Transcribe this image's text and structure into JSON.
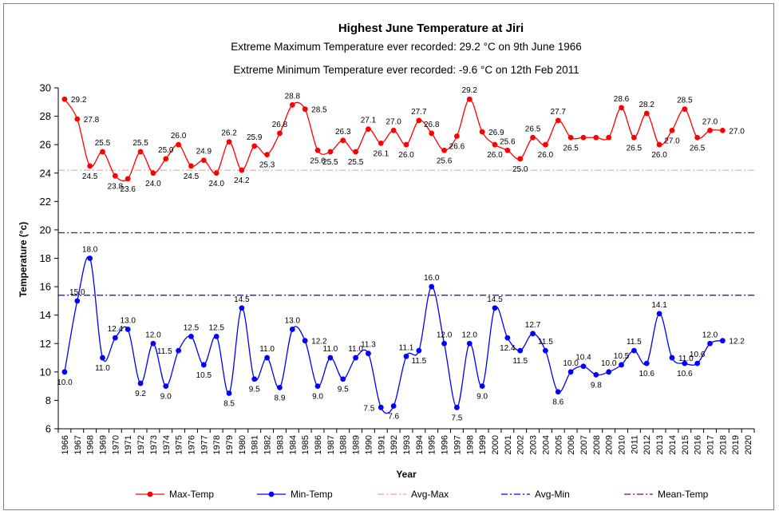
{
  "chart_data": {
    "type": "line",
    "title": "Highest June Temperature at Jiri",
    "subtitles": [
      "Extreme Maximum Temperature ever recorded: 29.2 °C on 9th June 1966",
      "Extreme Minimum Temperature ever recorded: -9.6 °C on 12th Feb 2011"
    ],
    "xlabel": "Year",
    "ylabel": "Temperature (°c)",
    "ylim": [
      6,
      30
    ],
    "yticks": [
      6,
      8,
      10,
      12,
      14,
      16,
      18,
      20,
      22,
      24,
      26,
      28,
      30
    ],
    "x": [
      1966,
      1967,
      1968,
      1969,
      1970,
      1971,
      1972,
      1973,
      1974,
      1975,
      1976,
      1977,
      1978,
      1979,
      1980,
      1981,
      1982,
      1983,
      1984,
      1985,
      1986,
      1987,
      1988,
      1989,
      1990,
      1991,
      1992,
      1993,
      1994,
      1995,
      1996,
      1997,
      1998,
      1999,
      2000,
      2001,
      2002,
      2003,
      2004,
      2005,
      2006,
      2007,
      2008,
      2009,
      2010,
      2011,
      2012,
      2013,
      2014,
      2015,
      2016,
      2017,
      2018,
      2019,
      2020
    ],
    "grid": false,
    "legend_position": "bottom",
    "series": [
      {
        "name": "Max-Temp",
        "kind": "line-marker",
        "color": "#ff0000",
        "values": [
          29.2,
          27.8,
          24.5,
          25.5,
          23.8,
          23.6,
          25.5,
          24.0,
          25.0,
          26.0,
          24.5,
          24.9,
          24.0,
          26.2,
          24.2,
          25.9,
          25.3,
          26.8,
          28.8,
          28.5,
          25.6,
          25.5,
          26.3,
          25.5,
          27.1,
          26.1,
          27.0,
          26.0,
          27.7,
          26.8,
          25.6,
          26.6,
          29.2,
          26.9,
          26.0,
          25.6,
          25.0,
          26.5,
          26.0,
          27.7,
          26.5,
          26.5,
          26.5,
          26.5,
          28.6,
          26.5,
          28.2,
          26.0,
          27.0,
          28.5,
          26.5,
          27.0,
          27.0,
          null,
          null
        ],
        "labels": [
          "29.2",
          "27.8",
          "24.5",
          "25.5",
          "23.8",
          "23.6",
          "25.5",
          "24.0",
          "25.0",
          "26.0",
          "24.5",
          "24.9",
          "24.0",
          "26.2",
          "24.2",
          "25.9",
          "25.3",
          "26.8",
          "28.8",
          "28.5",
          "25.6",
          "25.5",
          "26.3",
          "25.5",
          "27.1",
          "26.1",
          "27.0",
          "26.0",
          "27.7",
          "26.8",
          "25.6",
          "26.6",
          "29.2",
          "26.9",
          "26.0",
          "25.6",
          "25.0",
          "26.5",
          "26.0",
          "27.7",
          "26.5",
          null,
          null,
          null,
          "28.6",
          "26.5",
          "28.2",
          "26.0",
          "27.0",
          "28.5",
          "26.5",
          "27.0",
          "27.0",
          null,
          null
        ],
        "label_pos": [
          "r",
          "r",
          "b",
          "t",
          "b",
          "b",
          "t",
          "b",
          "t",
          "t",
          "b",
          "t",
          "b",
          "t",
          "b",
          "t",
          "b",
          "t",
          "t",
          "r",
          "b",
          "b",
          "t",
          "b",
          "t",
          "b",
          "t",
          "b",
          "t",
          "t",
          "b",
          "b",
          "t",
          "r",
          "b",
          "t",
          "b",
          "t",
          "b",
          "t",
          "b",
          "t",
          "t",
          "t",
          "t",
          "b",
          "t",
          "b",
          "b",
          "t",
          "b",
          "t",
          "r",
          "t",
          "t"
        ]
      },
      {
        "name": "Min-Temp",
        "kind": "line-marker",
        "color": "#0000ff",
        "values": [
          10.0,
          15.0,
          18.0,
          11.0,
          12.4,
          13.0,
          9.2,
          12.0,
          9.0,
          11.5,
          12.5,
          10.5,
          12.5,
          8.5,
          14.5,
          9.5,
          11.0,
          8.9,
          13.0,
          12.2,
          9.0,
          11.0,
          9.5,
          11.0,
          11.3,
          7.5,
          7.6,
          11.1,
          11.5,
          16.0,
          12.0,
          7.5,
          12.0,
          9.0,
          14.5,
          12.4,
          11.5,
          12.7,
          11.5,
          8.6,
          10.0,
          10.4,
          9.8,
          10.0,
          10.5,
          11.5,
          10.6,
          14.1,
          11.0,
          10.6,
          10.6,
          12.0,
          12.2,
          null,
          null
        ],
        "labels": [
          "10.0",
          "15.0",
          "18.0",
          "11.0",
          "12.4",
          "13.0",
          "9.2",
          "12.0",
          "9.0",
          "11.5",
          "12.5",
          "10.5",
          "12.5",
          "8.5",
          "14.5",
          "9.5",
          "11.0",
          "8.9",
          "13.0",
          "12.2",
          "9.0",
          "11.0",
          "9.5",
          "11.0",
          "11.3",
          "7.5",
          "7.6",
          "11.1",
          "11.5",
          "16.0",
          "12.0",
          "7.5",
          "12.0",
          "9.0",
          "14.5",
          "12.4",
          "11.5",
          "12.7",
          "11.5",
          "8.6",
          "10.0",
          "10.4",
          "9.8",
          "10.0",
          "10.5",
          "11.5",
          "10.6",
          "14.1",
          "11.0",
          "10.6",
          "10.6",
          "12.0",
          "12.2",
          null,
          null
        ],
        "label_pos": [
          "b",
          "t",
          "t",
          "b",
          "t",
          "t",
          "b",
          "t",
          "b",
          "l",
          "t",
          "b",
          "t",
          "b",
          "t",
          "b",
          "t",
          "b",
          "t",
          "r",
          "b",
          "t",
          "b",
          "t",
          "t",
          "l",
          "b",
          "t",
          "b",
          "t",
          "t",
          "b",
          "t",
          "b",
          "t",
          "b",
          "b",
          "t",
          "t",
          "b",
          "t",
          "t",
          "b",
          "t",
          "t",
          "t",
          "b",
          "t",
          "r",
          "b",
          "t",
          "t",
          "r",
          "t",
          "t"
        ]
      },
      {
        "name": "Avg-Max",
        "kind": "hline",
        "color": "#ff9999",
        "dash": "dash-dot",
        "value": 24.2
      },
      {
        "name": "Avg-Min",
        "kind": "hline",
        "color": "#0000ff",
        "dash": "dash-dot",
        "value": 15.4
      },
      {
        "name": "Mean-Temp",
        "kind": "hline",
        "color": "#800080",
        "dash": "dash-dot",
        "value": 19.8
      }
    ]
  }
}
